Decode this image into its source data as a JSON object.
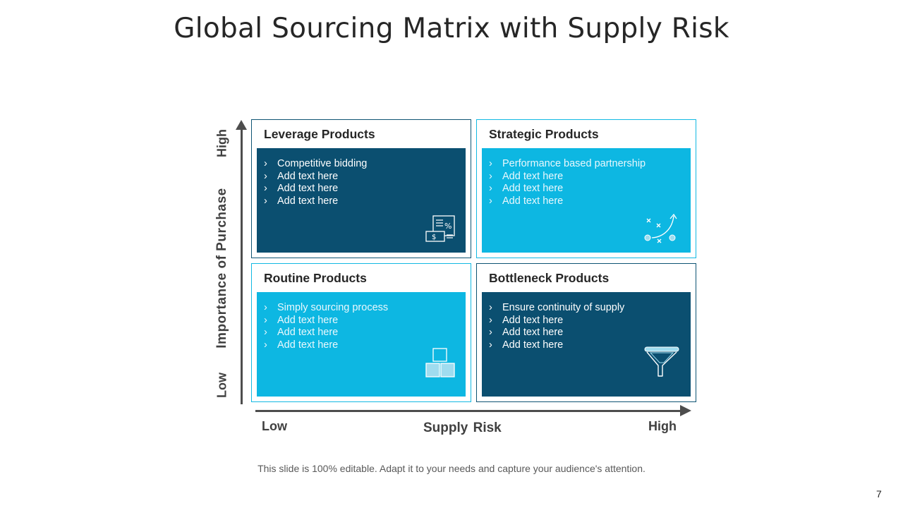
{
  "title": "Global Sourcing Matrix with Supply Risk",
  "y_axis": {
    "title": "Importance of Purchase",
    "high": "High",
    "low": "Low"
  },
  "x_axis": {
    "title": "Supply  Risk",
    "low": "Low",
    "high": "High"
  },
  "bullet_glyph": "›",
  "quadrants": {
    "leverage": {
      "title": "Leverage Products",
      "items": [
        "Competitive bidding",
        "Add text here",
        "Add text here",
        "Add text here"
      ],
      "icon": "budget-document-icon"
    },
    "strategic": {
      "title": "Strategic Products",
      "items": [
        "Performance based partnership",
        "Add text here",
        "Add text here",
        "Add text here"
      ],
      "icon": "strategy-play-icon"
    },
    "routine": {
      "title": "Routine Products",
      "items": [
        "Simply sourcing process",
        "Add text here",
        "Add text here",
        "Add text here"
      ],
      "icon": "stacked-boxes-icon"
    },
    "bottleneck": {
      "title": "Bottleneck Products",
      "items": [
        "Ensure continuity of supply",
        "Add text here",
        "Add text here",
        "Add text here"
      ],
      "icon": "funnel-icon"
    }
  },
  "colors": {
    "dark": "#0b4f70",
    "light": "#0db7e2",
    "axis": "#4d4d4d"
  },
  "footer": "This slide is 100% editable. Adapt it to your needs and capture your audience's attention.",
  "page_number": "7"
}
